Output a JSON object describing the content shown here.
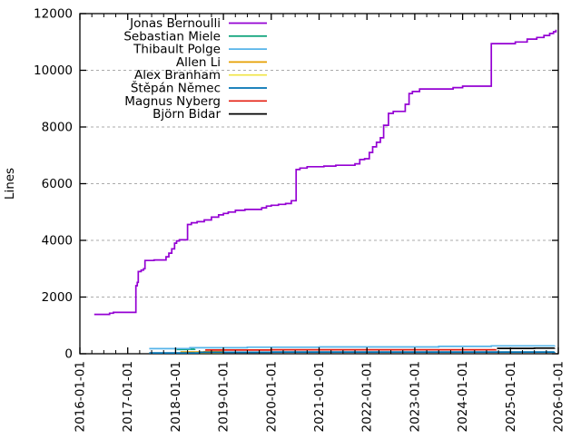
{
  "chart_data": {
    "type": "line",
    "title": "",
    "xlabel": "",
    "ylabel": "Lines",
    "xlim": [
      2016.0,
      2026.0
    ],
    "ylim": [
      0,
      12000
    ],
    "y_ticks": [
      0,
      2000,
      4000,
      6000,
      8000,
      10000,
      12000
    ],
    "x_ticks": [
      {
        "pos": 2016,
        "label": "2016-01-01"
      },
      {
        "pos": 2017,
        "label": "2017-01-01"
      },
      {
        "pos": 2018,
        "label": "2018-01-01"
      },
      {
        "pos": 2019,
        "label": "2019-01-01"
      },
      {
        "pos": 2020,
        "label": "2020-01-01"
      },
      {
        "pos": 2021,
        "label": "2021-01-01"
      },
      {
        "pos": 2022,
        "label": "2022-01-01"
      },
      {
        "pos": 2023,
        "label": "2023-01-01"
      },
      {
        "pos": 2024,
        "label": "2024-01-01"
      },
      {
        "pos": 2025,
        "label": "2025-01-01"
      },
      {
        "pos": 2026,
        "label": "2026-01-01"
      }
    ],
    "x_minor_ticks_per_year": 3,
    "grid": "horizontal-dashed",
    "grid_color": "#ababab",
    "legend_position": "top-inside",
    "series": [
      {
        "name": "Jonas Bernoulli",
        "color": "#9400d3",
        "points": [
          [
            2016.3,
            1390
          ],
          [
            2016.62,
            1430
          ],
          [
            2016.7,
            1460
          ],
          [
            2017.17,
            2400
          ],
          [
            2017.2,
            2520
          ],
          [
            2017.22,
            2900
          ],
          [
            2017.28,
            2950
          ],
          [
            2017.33,
            3000
          ],
          [
            2017.36,
            3290
          ],
          [
            2017.55,
            3310
          ],
          [
            2017.8,
            3420
          ],
          [
            2017.86,
            3550
          ],
          [
            2017.92,
            3700
          ],
          [
            2017.98,
            3900
          ],
          [
            2018.02,
            3980
          ],
          [
            2018.08,
            4020
          ],
          [
            2018.25,
            4560
          ],
          [
            2018.33,
            4620
          ],
          [
            2018.45,
            4660
          ],
          [
            2018.6,
            4720
          ],
          [
            2018.75,
            4820
          ],
          [
            2018.9,
            4900
          ],
          [
            2019.0,
            4950
          ],
          [
            2019.1,
            5000
          ],
          [
            2019.25,
            5060
          ],
          [
            2019.45,
            5090
          ],
          [
            2019.8,
            5150
          ],
          [
            2019.9,
            5210
          ],
          [
            2020.0,
            5240
          ],
          [
            2020.15,
            5270
          ],
          [
            2020.3,
            5300
          ],
          [
            2020.42,
            5400
          ],
          [
            2020.52,
            6500
          ],
          [
            2020.6,
            6550
          ],
          [
            2020.75,
            6600
          ],
          [
            2021.1,
            6620
          ],
          [
            2021.35,
            6650
          ],
          [
            2021.75,
            6700
          ],
          [
            2021.85,
            6850
          ],
          [
            2021.95,
            6880
          ],
          [
            2022.05,
            7100
          ],
          [
            2022.12,
            7300
          ],
          [
            2022.2,
            7460
          ],
          [
            2022.28,
            7620
          ],
          [
            2022.35,
            8060
          ],
          [
            2022.45,
            8480
          ],
          [
            2022.55,
            8550
          ],
          [
            2022.8,
            8800
          ],
          [
            2022.88,
            9180
          ],
          [
            2022.95,
            9250
          ],
          [
            2023.1,
            9340
          ],
          [
            2023.8,
            9390
          ],
          [
            2024.0,
            9440
          ],
          [
            2024.6,
            10940
          ],
          [
            2025.1,
            11000
          ],
          [
            2025.35,
            11100
          ],
          [
            2025.55,
            11160
          ],
          [
            2025.7,
            11230
          ],
          [
            2025.82,
            11300
          ],
          [
            2025.9,
            11360
          ],
          [
            2025.95,
            11430
          ]
        ]
      },
      {
        "name": "Sebastian Miele",
        "color": "#009e73",
        "points": [
          [
            2018.02,
            150
          ],
          [
            2018.25,
            160
          ],
          [
            2018.4,
            165
          ]
        ]
      },
      {
        "name": "Thibault Polge",
        "color": "#56b4e9",
        "points": [
          [
            2017.45,
            180
          ],
          [
            2018.3,
            210
          ],
          [
            2019.5,
            230
          ],
          [
            2021.0,
            240
          ],
          [
            2023.5,
            260
          ],
          [
            2024.6,
            280
          ],
          [
            2025.92,
            290
          ]
        ]
      },
      {
        "name": "Allen Li",
        "color": "#e69f00",
        "points": [
          [
            2018.1,
            60
          ],
          [
            2018.6,
            75
          ],
          [
            2019.0,
            80
          ]
        ]
      },
      {
        "name": "Alex Branham",
        "color": "#f0e442",
        "points": [
          [
            2018.4,
            40
          ],
          [
            2019.0,
            50
          ]
        ]
      },
      {
        "name": "Štěpán Němec",
        "color": "#0072b2",
        "points": [
          [
            2017.45,
            30
          ],
          [
            2018.5,
            50
          ],
          [
            2020.0,
            60
          ],
          [
            2025.92,
            65
          ]
        ]
      },
      {
        "name": "Magnus Nyberg",
        "color": "#e51e10",
        "points": [
          [
            2018.62,
            130
          ],
          [
            2020.0,
            140
          ],
          [
            2024.7,
            145
          ]
        ]
      },
      {
        "name": "Björn Bidar",
        "color": "#000000",
        "points": [
          [
            2024.72,
            190
          ],
          [
            2025.5,
            200
          ],
          [
            2025.92,
            205
          ]
        ]
      }
    ]
  }
}
